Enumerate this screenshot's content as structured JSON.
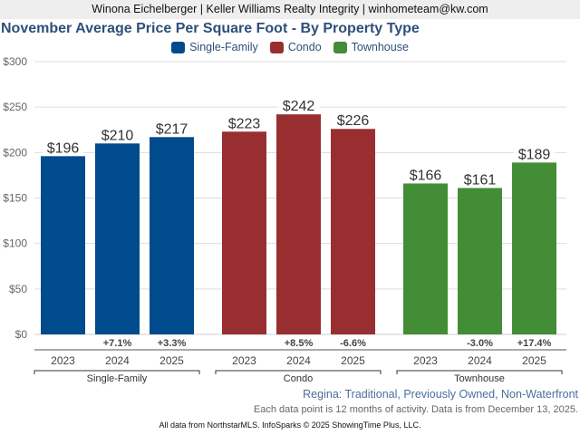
{
  "header": {
    "agent_line": "Winona Eichelberger | Keller Williams Realty Integrity | winhometeam@kw.com"
  },
  "chart_data": {
    "type": "bar",
    "title": "November Average Price Per Square Foot - By Property Type",
    "xlabel": "",
    "ylabel": "",
    "ylim": [
      0,
      300
    ],
    "yticks": [
      0,
      50,
      100,
      150,
      200,
      250,
      300
    ],
    "ytick_labels": [
      "$0",
      "$50",
      "$100",
      "$150",
      "$200",
      "$250",
      "$300"
    ],
    "grid": true,
    "legend_position": "top-center",
    "legend": [
      {
        "name": "Single-Family",
        "color": "#004b8d"
      },
      {
        "name": "Condo",
        "color": "#992e30"
      },
      {
        "name": "Townhouse",
        "color": "#438d37"
      }
    ],
    "groups": [
      {
        "name": "Single-Family",
        "color": "#004b8d",
        "categories": [
          "2023",
          "2024",
          "2025"
        ],
        "values": [
          196,
          210,
          217
        ],
        "value_labels": [
          "$196",
          "$210",
          "$217"
        ],
        "pct_change": [
          "",
          "+7.1%",
          "+3.3%"
        ]
      },
      {
        "name": "Condo",
        "color": "#992e30",
        "categories": [
          "2023",
          "2024",
          "2025"
        ],
        "values": [
          223,
          242,
          226
        ],
        "value_labels": [
          "$223",
          "$242",
          "$226"
        ],
        "pct_change": [
          "",
          "+8.5%",
          "-6.6%"
        ]
      },
      {
        "name": "Townhouse",
        "color": "#438d37",
        "categories": [
          "2023",
          "2024",
          "2025"
        ],
        "values": [
          166,
          161,
          189
        ],
        "value_labels": [
          "$166",
          "$161",
          "$189"
        ],
        "pct_change": [
          "",
          "-3.0%",
          "+17.4%"
        ]
      }
    ]
  },
  "subtitle": "Regina: Traditional, Previously Owned, Non-Waterfront",
  "note": "Each data point is 12 months of activity. Data is from December 13, 2025.",
  "footer": "All data from NorthstarMLS. InfoSparks © 2025 ShowingTime Plus, LLC."
}
